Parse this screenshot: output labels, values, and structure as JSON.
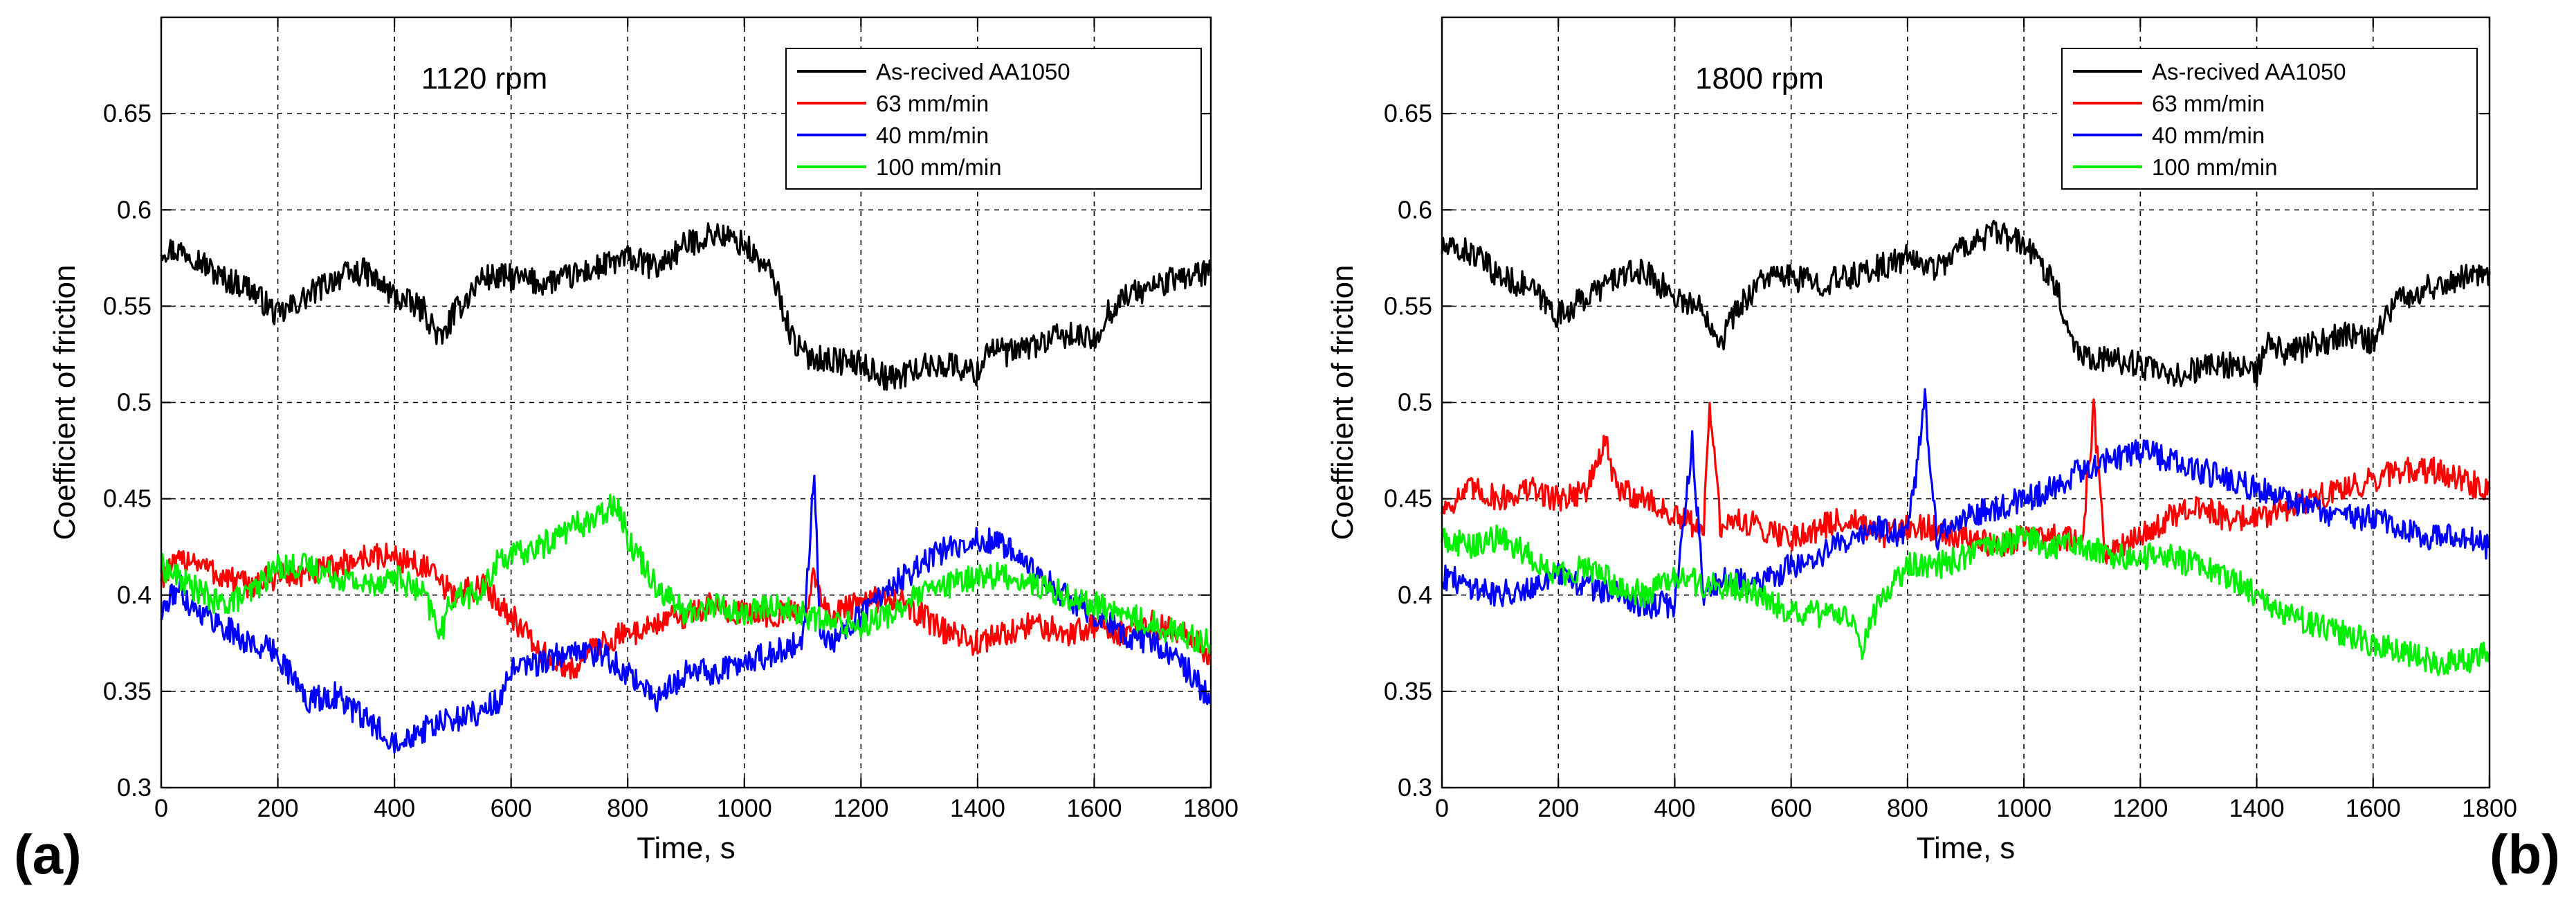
{
  "chart_data": [
    {
      "type": "line",
      "panel_label": "(a)",
      "title": "1120 rpm",
      "xlabel": "Time, s",
      "ylabel": "Coefficient of friction",
      "xlim": [
        0,
        1800
      ],
      "ylim": [
        0.3,
        0.7
      ],
      "xticks": [
        0,
        200,
        400,
        600,
        800,
        1000,
        1200,
        1400,
        1600,
        1800
      ],
      "xtick_labels": [
        "0",
        "200",
        "400",
        "600",
        "800",
        "1000",
        "1200",
        "1400",
        "1600",
        "1800"
      ],
      "yticks": [
        0.3,
        0.35,
        0.4,
        0.45,
        0.5,
        0.55,
        0.6,
        0.65
      ],
      "ytick_labels": [
        "0.3",
        "0.35",
        "0.4",
        "0.45",
        "0.5",
        "0.55",
        "0.6",
        "0.65"
      ],
      "grid": true,
      "legend_position": "top-right",
      "series": [
        {
          "name": "As-recived AA1050",
          "color": "#000000",
          "x": [
            0,
            50,
            100,
            150,
            200,
            250,
            300,
            350,
            400,
            450,
            480,
            500,
            550,
            600,
            650,
            700,
            750,
            800,
            850,
            900,
            950,
            1000,
            1050,
            1080,
            1100,
            1150,
            1200,
            1250,
            1300,
            1350,
            1400,
            1420,
            1450,
            1500,
            1550,
            1600,
            1620,
            1650,
            1700,
            1750,
            1800
          ],
          "y": [
            0.58,
            0.578,
            0.565,
            0.56,
            0.545,
            0.555,
            0.565,
            0.568,
            0.555,
            0.548,
            0.532,
            0.545,
            0.565,
            0.565,
            0.562,
            0.565,
            0.57,
            0.575,
            0.57,
            0.582,
            0.588,
            0.582,
            0.565,
            0.535,
            0.525,
            0.522,
            0.52,
            0.512,
            0.518,
            0.52,
            0.515,
            0.53,
            0.525,
            0.53,
            0.535,
            0.532,
            0.545,
            0.555,
            0.56,
            0.565,
            0.568
          ]
        },
        {
          "name": "63 mm/min",
          "color": "#ff0000",
          "x": [
            0,
            50,
            100,
            150,
            200,
            250,
            300,
            350,
            400,
            450,
            500,
            550,
            600,
            650,
            700,
            750,
            800,
            850,
            900,
            950,
            1000,
            1050,
            1100,
            1120,
            1140,
            1200,
            1250,
            1300,
            1350,
            1400,
            1450,
            1500,
            1550,
            1600,
            1650,
            1700,
            1750,
            1800
          ],
          "y": [
            0.41,
            0.42,
            0.41,
            0.405,
            0.41,
            0.41,
            0.415,
            0.42,
            0.42,
            0.415,
            0.4,
            0.405,
            0.39,
            0.37,
            0.36,
            0.375,
            0.38,
            0.385,
            0.39,
            0.395,
            0.39,
            0.39,
            0.39,
            0.41,
            0.39,
            0.395,
            0.4,
            0.39,
            0.38,
            0.375,
            0.38,
            0.385,
            0.38,
            0.385,
            0.38,
            0.385,
            0.38,
            0.37
          ]
        },
        {
          "name": "40 mm/min",
          "color": "#0000ff",
          "x": [
            0,
            30,
            50,
            100,
            150,
            200,
            250,
            300,
            350,
            400,
            450,
            500,
            550,
            580,
            600,
            650,
            700,
            750,
            800,
            850,
            900,
            950,
            1000,
            1050,
            1100,
            1120,
            1130,
            1150,
            1200,
            1250,
            1300,
            1350,
            1400,
            1450,
            1500,
            1550,
            1600,
            1650,
            1700,
            1750,
            1800
          ],
          "y": [
            0.39,
            0.405,
            0.395,
            0.385,
            0.375,
            0.37,
            0.345,
            0.348,
            0.335,
            0.325,
            0.33,
            0.335,
            0.34,
            0.345,
            0.36,
            0.365,
            0.37,
            0.37,
            0.36,
            0.345,
            0.36,
            0.36,
            0.365,
            0.37,
            0.375,
            0.465,
            0.38,
            0.375,
            0.39,
            0.405,
            0.415,
            0.425,
            0.43,
            0.425,
            0.41,
            0.4,
            0.39,
            0.38,
            0.375,
            0.365,
            0.345
          ]
        },
        {
          "name": "100 mm/min",
          "color": "#00ee00",
          "x": [
            0,
            50,
            100,
            150,
            200,
            250,
            300,
            350,
            400,
            450,
            480,
            500,
            550,
            580,
            600,
            650,
            700,
            750,
            780,
            800,
            850,
            900,
            950,
            1000,
            1050,
            1100,
            1150,
            1200,
            1250,
            1300,
            1350,
            1400,
            1450,
            1500,
            1550,
            1600,
            1650,
            1700,
            1750,
            1800
          ],
          "y": [
            0.415,
            0.405,
            0.395,
            0.4,
            0.415,
            0.415,
            0.41,
            0.405,
            0.41,
            0.4,
            0.38,
            0.4,
            0.4,
            0.42,
            0.42,
            0.425,
            0.435,
            0.44,
            0.45,
            0.43,
            0.405,
            0.39,
            0.395,
            0.39,
            0.395,
            0.39,
            0.385,
            0.385,
            0.39,
            0.4,
            0.405,
            0.41,
            0.41,
            0.405,
            0.4,
            0.395,
            0.39,
            0.385,
            0.38,
            0.375
          ]
        }
      ]
    },
    {
      "type": "line",
      "panel_label": "(b)",
      "title": "1800 rpm",
      "xlabel": "Time, s",
      "ylabel": "Coefficient of friction",
      "xlim": [
        0,
        1800
      ],
      "ylim": [
        0.3,
        0.7
      ],
      "xticks": [
        0,
        200,
        400,
        600,
        800,
        1000,
        1200,
        1400,
        1600,
        1800
      ],
      "xtick_labels": [
        "0",
        "200",
        "400",
        "600",
        "800",
        "1000",
        "1200",
        "1400",
        "1600",
        "1800"
      ],
      "yticks": [
        0.3,
        0.35,
        0.4,
        0.45,
        0.5,
        0.55,
        0.6,
        0.65
      ],
      "ytick_labels": [
        "0.3",
        "0.35",
        "0.4",
        "0.45",
        "0.5",
        "0.55",
        "0.6",
        "0.65"
      ],
      "grid": true,
      "legend_position": "top-right",
      "series": [
        {
          "name": "As-recived AA1050",
          "color": "#000000",
          "x": [
            0,
            50,
            100,
            150,
            200,
            250,
            300,
            350,
            400,
            450,
            480,
            500,
            550,
            600,
            650,
            700,
            750,
            800,
            850,
            900,
            950,
            1000,
            1050,
            1080,
            1100,
            1150,
            1200,
            1250,
            1300,
            1350,
            1400,
            1420,
            1450,
            1500,
            1550,
            1600,
            1620,
            1650,
            1700,
            1750,
            1800
          ],
          "y": [
            0.58,
            0.578,
            0.565,
            0.56,
            0.545,
            0.555,
            0.565,
            0.568,
            0.555,
            0.548,
            0.532,
            0.545,
            0.565,
            0.565,
            0.562,
            0.565,
            0.57,
            0.575,
            0.57,
            0.582,
            0.588,
            0.582,
            0.565,
            0.535,
            0.525,
            0.522,
            0.52,
            0.512,
            0.518,
            0.52,
            0.515,
            0.53,
            0.525,
            0.53,
            0.535,
            0.532,
            0.545,
            0.555,
            0.56,
            0.565,
            0.568
          ]
        },
        {
          "name": "63 mm/min",
          "color": "#ff0000",
          "x": [
            0,
            50,
            100,
            150,
            200,
            250,
            280,
            300,
            350,
            400,
            450,
            460,
            480,
            500,
            550,
            600,
            650,
            700,
            750,
            800,
            850,
            900,
            950,
            1000,
            1050,
            1100,
            1120,
            1140,
            1200,
            1250,
            1300,
            1350,
            1400,
            1450,
            1500,
            1550,
            1600,
            1650,
            1700,
            1750,
            1800
          ],
          "y": [
            0.445,
            0.455,
            0.45,
            0.455,
            0.45,
            0.455,
            0.48,
            0.455,
            0.45,
            0.44,
            0.435,
            0.5,
            0.43,
            0.44,
            0.435,
            0.43,
            0.435,
            0.44,
            0.43,
            0.435,
            0.435,
            0.43,
            0.425,
            0.43,
            0.43,
            0.43,
            0.495,
            0.42,
            0.43,
            0.44,
            0.445,
            0.44,
            0.44,
            0.445,
            0.45,
            0.455,
            0.46,
            0.465,
            0.465,
            0.46,
            0.455
          ]
        },
        {
          "name": "40 mm/min",
          "color": "#0000ff",
          "x": [
            0,
            50,
            100,
            150,
            200,
            250,
            300,
            350,
            400,
            430,
            450,
            500,
            550,
            600,
            650,
            700,
            750,
            800,
            830,
            850,
            900,
            950,
            1000,
            1050,
            1100,
            1150,
            1200,
            1250,
            1300,
            1350,
            1400,
            1450,
            1500,
            1550,
            1600,
            1650,
            1700,
            1750,
            1800
          ],
          "y": [
            0.41,
            0.405,
            0.4,
            0.405,
            0.41,
            0.405,
            0.4,
            0.395,
            0.395,
            0.48,
            0.4,
            0.41,
            0.405,
            0.415,
            0.42,
            0.43,
            0.435,
            0.43,
            0.5,
            0.43,
            0.44,
            0.445,
            0.45,
            0.455,
            0.465,
            0.47,
            0.475,
            0.47,
            0.465,
            0.46,
            0.455,
            0.45,
            0.445,
            0.44,
            0.44,
            0.435,
            0.43,
            0.43,
            0.425
          ]
        },
        {
          "name": "100 mm/min",
          "color": "#00ee00",
          "x": [
            0,
            50,
            100,
            150,
            200,
            250,
            300,
            350,
            400,
            450,
            500,
            550,
            600,
            650,
            700,
            720,
            750,
            800,
            850,
            900,
            950,
            1000,
            1050,
            1100,
            1150,
            1200,
            1250,
            1300,
            1350,
            1400,
            1450,
            1500,
            1550,
            1600,
            1650,
            1700,
            1750,
            1800
          ],
          "y": [
            0.43,
            0.425,
            0.43,
            0.42,
            0.41,
            0.415,
            0.405,
            0.4,
            0.41,
            0.405,
            0.405,
            0.4,
            0.39,
            0.39,
            0.39,
            0.37,
            0.395,
            0.415,
            0.415,
            0.42,
            0.425,
            0.43,
            0.425,
            0.425,
            0.42,
            0.42,
            0.42,
            0.415,
            0.41,
            0.4,
            0.39,
            0.385,
            0.38,
            0.375,
            0.37,
            0.365,
            0.365,
            0.37
          ]
        }
      ]
    }
  ]
}
